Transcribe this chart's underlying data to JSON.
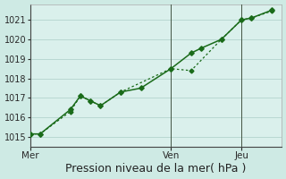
{
  "background_color": "#ceeae4",
  "plot_bg_color": "#daf0ec",
  "grid_color": "#b8d8d2",
  "line_color": "#1a6b1a",
  "xlabel": "Pression niveau de la mer( hPa )",
  "ylim": [
    1014.5,
    1021.8
  ],
  "yticks": [
    1015,
    1016,
    1017,
    1018,
    1019,
    1020,
    1021
  ],
  "xtick_labels": [
    "Mer",
    "Ven",
    "Jeu"
  ],
  "xtick_pos": [
    0,
    14,
    21
  ],
  "vline_pos": [
    14,
    21
  ],
  "series1_x": [
    0,
    1,
    4,
    5,
    6,
    7,
    9,
    11,
    14,
    16,
    17,
    19,
    21,
    22,
    24
  ],
  "series1_y": [
    1015.15,
    1015.15,
    1016.4,
    1017.1,
    1016.85,
    1016.6,
    1017.3,
    1017.5,
    1018.5,
    1019.3,
    1019.55,
    1020.0,
    1021.0,
    1021.1,
    1021.5
  ],
  "series2_x": [
    0,
    1,
    4,
    5,
    6,
    7,
    9,
    14,
    16,
    19,
    21,
    22,
    24
  ],
  "series2_y": [
    1015.15,
    1015.15,
    1016.3,
    1017.1,
    1016.85,
    1016.6,
    1017.3,
    1018.5,
    1018.4,
    1020.0,
    1021.0,
    1021.1,
    1021.45
  ],
  "xlabel_fontsize": 9,
  "ytick_fontsize": 7,
  "xtick_fontsize": 7.5
}
